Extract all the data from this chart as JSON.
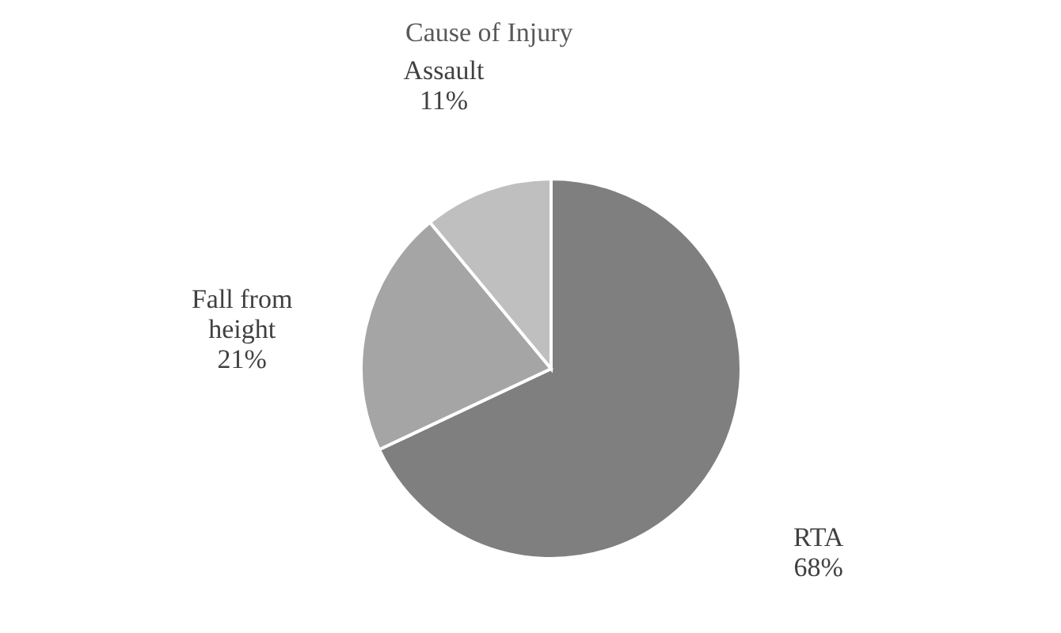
{
  "chart_data": {
    "type": "pie",
    "title": "Cause of Injury",
    "categories": [
      "RTA",
      "Fall from height",
      "Assault"
    ],
    "values": [
      68,
      21,
      11
    ],
    "value_labels": [
      "68%",
      "21%",
      "11%"
    ],
    "colors": [
      "#7f7f7f",
      "#a5a5a5",
      "#bfbfbf"
    ]
  }
}
